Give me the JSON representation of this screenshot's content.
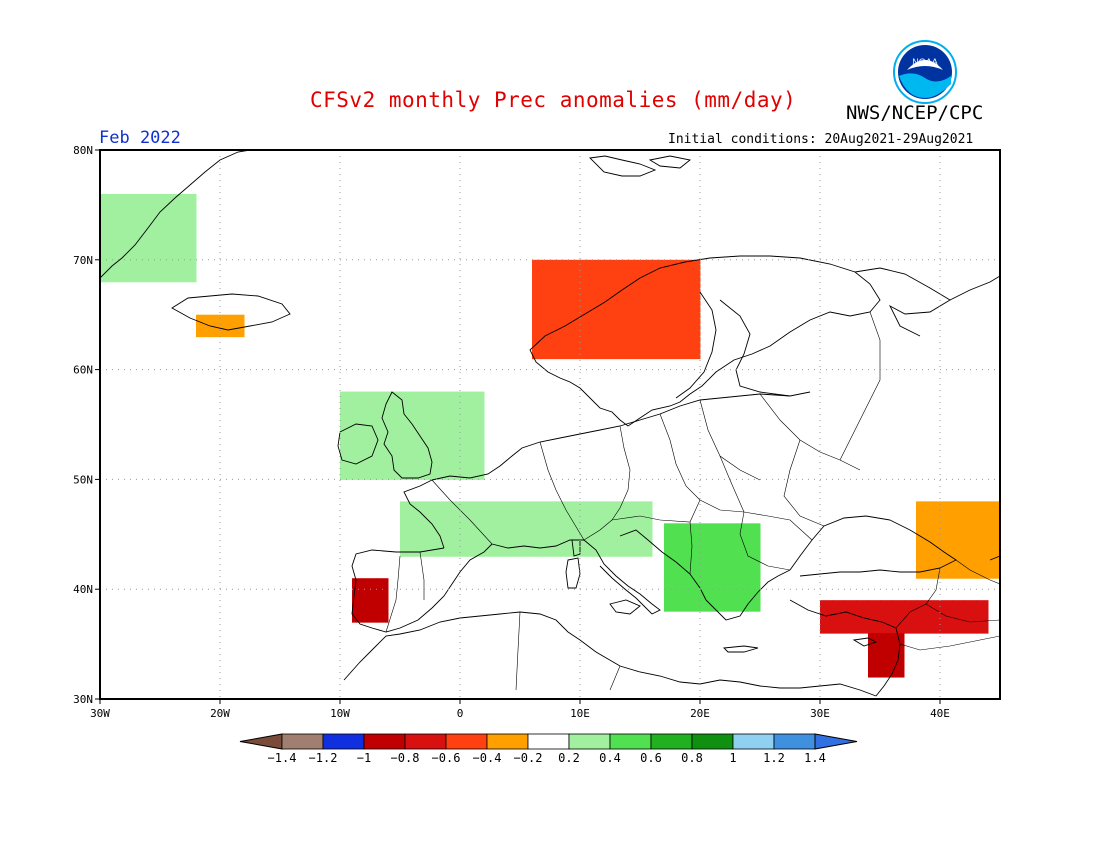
{
  "header": {
    "title": "CFSv2 monthly Prec anomalies (mm/day)",
    "agency": "NWS/NCEP/CPC",
    "logo_text": "NOAA",
    "month": "Feb 2022",
    "initial_conditions": "Initial conditions: 20Aug2021-29Aug2021"
  },
  "axes": {
    "lat_labels": [
      "80N",
      "70N",
      "60N",
      "50N",
      "40N",
      "30N"
    ],
    "lon_labels": [
      "30W",
      "20W",
      "10W",
      "0",
      "10E",
      "20E",
      "30E",
      "40E"
    ],
    "lon_range": [
      -30,
      45
    ],
    "lat_range": [
      30,
      80
    ],
    "grid": "dotted"
  },
  "colorbar": {
    "labels": [
      "-1.4",
      "-1.2",
      "-1",
      "-0.8",
      "-0.6",
      "-0.4",
      "-0.2",
      "0.2",
      "0.4",
      "0.6",
      "0.8",
      "1",
      "1.2",
      "1.4"
    ],
    "colors": [
      "#7a4a3a",
      "#a07f70",
      "#1030e0",
      "#c00000",
      "#d81010",
      "#ff4010",
      "#ffa000",
      "#ffffff",
      "#a0f0a0",
      "#50e050",
      "#20b020",
      "#109010",
      "#90d0f0",
      "#4090e0",
      "#3070e0"
    ]
  },
  "anomaly_regions": [
    {
      "name": "greenland-east",
      "category": "0.2-0.4",
      "color": "#a0f0a0",
      "lon": [
        -30,
        -22
      ],
      "lat": [
        68,
        76
      ]
    },
    {
      "name": "iceland-south",
      "category": "-0.4--0.2",
      "color": "#ffa000",
      "lon": [
        -22,
        -18
      ],
      "lat": [
        63,
        65
      ]
    },
    {
      "name": "norway-coast",
      "category": "-0.6--0.4",
      "color": "#ff4010",
      "lon": [
        6,
        20
      ],
      "lat": [
        61,
        70
      ]
    },
    {
      "name": "british-isles",
      "category": "0.2-0.4",
      "color": "#a0f0a0",
      "lon": [
        -10,
        2
      ],
      "lat": [
        50,
        58
      ]
    },
    {
      "name": "france-italy",
      "category": "0.2-0.4",
      "color": "#a0f0a0",
      "lon": [
        -5,
        16
      ],
      "lat": [
        43,
        48
      ]
    },
    {
      "name": "balkans",
      "category": "0.4-0.6",
      "color": "#50e050",
      "lon": [
        17,
        25
      ],
      "lat": [
        38,
        46
      ]
    },
    {
      "name": "iberia-west",
      "category": "-1--0.8",
      "color": "#c00000",
      "lon": [
        -9,
        -6
      ],
      "lat": [
        37,
        41
      ]
    },
    {
      "name": "turkey-south",
      "category": "-0.8--0.6",
      "color": "#d81010",
      "lon": [
        30,
        44
      ],
      "lat": [
        36,
        39
      ]
    },
    {
      "name": "caucasus",
      "category": "-0.4--0.2",
      "color": "#ffa000",
      "lon": [
        38,
        45
      ],
      "lat": [
        41,
        48
      ]
    },
    {
      "name": "levant",
      "category": "-1--0.8",
      "color": "#c00000",
      "lon": [
        34,
        37
      ],
      "lat": [
        32,
        36
      ]
    }
  ]
}
